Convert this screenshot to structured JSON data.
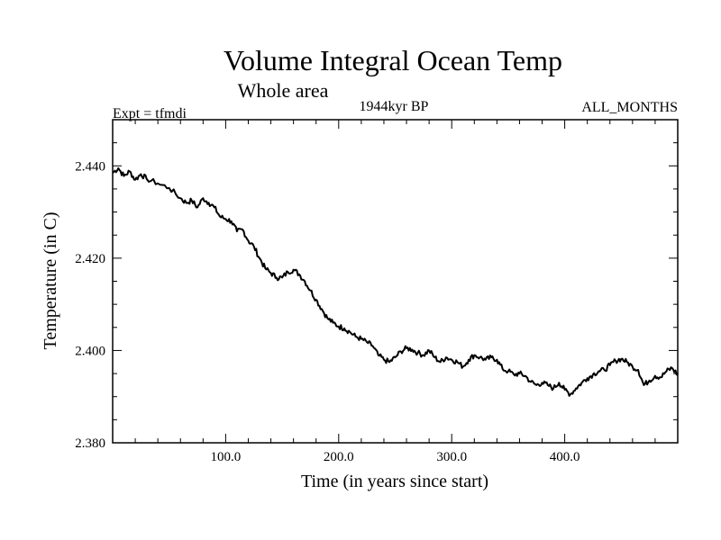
{
  "chart_data": {
    "type": "line",
    "title": "Volume Integral Ocean Temp",
    "subtitle": "Whole area",
    "left_annotation": "Expt = tfmdi",
    "center_annotation": "1944kyr BP",
    "right_annotation": "ALL_MONTHS",
    "xlabel": "Time (in years since start)",
    "ylabel": "Temperature (in C)",
    "xlim": [
      0,
      500
    ],
    "ylim": [
      2.38,
      2.45
    ],
    "xticks": [
      100,
      200,
      300,
      400
    ],
    "xtick_labels": [
      "100.0",
      "200.0",
      "300.0",
      "400.0"
    ],
    "yticks": [
      2.38,
      2.4,
      2.42,
      2.44
    ],
    "ytick_labels": [
      "2.380",
      "2.400",
      "2.420",
      "2.440"
    ],
    "series": [
      {
        "name": "Volume integral ocean temperature",
        "color": "#000000",
        "x": [
          0,
          5,
          10,
          15,
          20,
          25,
          30,
          40,
          50,
          60,
          65,
          70,
          75,
          80,
          85,
          90,
          95,
          100,
          105,
          110,
          115,
          120,
          125,
          130,
          135,
          140,
          145,
          150,
          155,
          160,
          165,
          170,
          175,
          180,
          185,
          190,
          195,
          200,
          205,
          210,
          215,
          220,
          225,
          230,
          235,
          240,
          245,
          250,
          255,
          260,
          265,
          270,
          275,
          280,
          285,
          290,
          295,
          300,
          305,
          310,
          315,
          320,
          325,
          330,
          335,
          340,
          345,
          350,
          355,
          360,
          365,
          370,
          375,
          380,
          385,
          390,
          395,
          400,
          405,
          410,
          415,
          420,
          425,
          430,
          435,
          440,
          445,
          450,
          455,
          460,
          465,
          470,
          475,
          480,
          485,
          490,
          495,
          500
        ],
        "values": [
          2.4385,
          2.4395,
          2.4378,
          2.4388,
          2.437,
          2.4382,
          2.4372,
          2.4362,
          2.4352,
          2.433,
          2.432,
          2.4325,
          2.431,
          2.433,
          2.432,
          2.431,
          2.429,
          2.4285,
          2.428,
          2.4258,
          2.4262,
          2.4238,
          2.4225,
          2.42,
          2.4178,
          2.4168,
          2.4158,
          2.4158,
          2.417,
          2.4175,
          2.4165,
          2.415,
          2.413,
          2.411,
          2.409,
          2.407,
          2.406,
          2.4052,
          2.4048,
          2.404,
          2.403,
          2.4025,
          2.4018,
          2.401,
          2.399,
          2.398,
          2.3975,
          2.3985,
          2.3998,
          2.4005,
          2.4002,
          2.3995,
          2.399,
          2.4,
          2.3985,
          2.3975,
          2.3985,
          2.398,
          2.3975,
          2.3965,
          2.398,
          2.399,
          2.3985,
          2.398,
          2.3985,
          2.398,
          2.396,
          2.3955,
          2.3948,
          2.395,
          2.3945,
          2.3932,
          2.3925,
          2.393,
          2.3925,
          2.3918,
          2.393,
          2.3915,
          2.3905,
          2.3918,
          2.393,
          2.394,
          2.3948,
          2.3955,
          2.3958,
          2.3968,
          2.3978,
          2.3982,
          2.3975,
          2.3965,
          2.3958,
          2.3925,
          2.3935,
          2.3945,
          2.3942,
          2.3955,
          2.3962,
          2.3948
        ]
      }
    ]
  }
}
